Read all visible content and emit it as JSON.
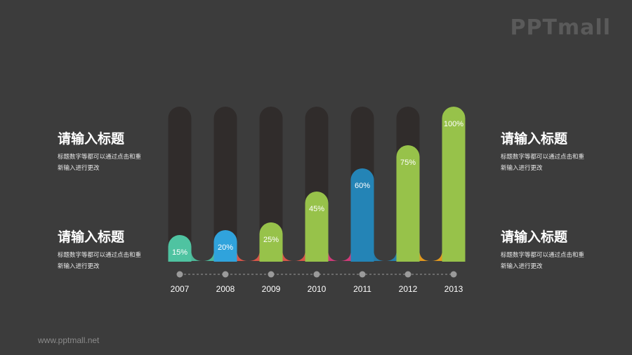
{
  "logo": "PPTmall",
  "footer": "www.pptmall.net",
  "blocks": [
    {
      "title": "请输入标题",
      "desc": "标题数字等都可以通过点击和重新输入进行更改"
    },
    {
      "title": "请输入标题",
      "desc": "标题数字等都可以通过点击和重新输入进行更改"
    },
    {
      "title": "请输入标题",
      "desc": "标题数字等都可以通过点击和重新输入进行更改"
    },
    {
      "title": "请输入标题",
      "desc": "标题数字等都可以通过点击和重新输入进行更改"
    }
  ],
  "colors": {
    "background": "#3c3c3c",
    "track": "#302c2b",
    "green": "#97c24a",
    "teal": "#4fc3a1",
    "blue": "#30a3dc",
    "darkblue": "#2484b6",
    "orange": "#f4a31b",
    "magenta": "#de3b80",
    "red": "#e8584a",
    "timeline": "#9a9a9a"
  },
  "chart_data": {
    "type": "bar",
    "categories": [
      "2007",
      "2008",
      "2009",
      "2010",
      "2011",
      "2012",
      "2013"
    ],
    "values": [
      15,
      20,
      25,
      45,
      60,
      75,
      100
    ],
    "labels": [
      "15%",
      "20%",
      "25%",
      "45%",
      "60%",
      "75%",
      "100%"
    ],
    "bar_colors": [
      "#4fc3a1",
      "#30a3dc",
      "#97c24a",
      "#97c24a",
      "#2484b6",
      "#97c24a",
      "#97c24a"
    ],
    "connector_colors": [
      "#4fc3a1",
      "#e8584a",
      "#e8584a",
      "#de3b80",
      "#2484b6",
      "#f4a31b",
      "#de3b80"
    ],
    "ylim": [
      0,
      100
    ],
    "grid": false,
    "legend": "none"
  }
}
